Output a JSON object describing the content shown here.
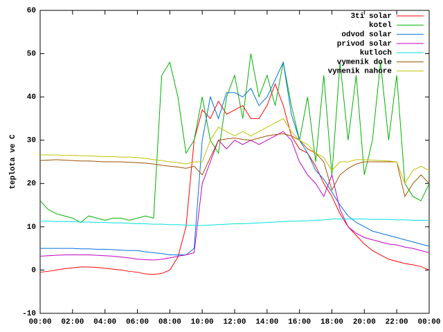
{
  "chart_data": {
    "type": "line",
    "ylabel": "teplota ve C",
    "ylim": [
      -10,
      60
    ],
    "yticks": [
      -10,
      0,
      10,
      20,
      30,
      40,
      50,
      60
    ],
    "xlim": [
      0,
      24
    ],
    "xticks": [
      {
        "value": 0,
        "label": "00:00"
      },
      {
        "value": 2,
        "label": "02:00"
      },
      {
        "value": 4,
        "label": "04:00"
      },
      {
        "value": 6,
        "label": "06:00"
      },
      {
        "value": 8,
        "label": "08:00"
      },
      {
        "value": 10,
        "label": "10:00"
      },
      {
        "value": 12,
        "label": "12:00"
      },
      {
        "value": 14,
        "label": "14:00"
      },
      {
        "value": 16,
        "label": "16:00"
      },
      {
        "value": 18,
        "label": "18:00"
      },
      {
        "value": 20,
        "label": "20:00"
      },
      {
        "value": 22,
        "label": "22:00"
      },
      {
        "value": 24,
        "label": "00:00"
      }
    ],
    "grid": false,
    "legend": "top-right",
    "x": [
      0,
      0.5,
      1,
      1.5,
      2,
      2.5,
      3,
      3.5,
      4,
      4.5,
      5,
      5.5,
      6,
      6.5,
      7,
      7.5,
      8,
      8.5,
      9,
      9.5,
      10,
      10.5,
      11,
      11.5,
      12,
      12.5,
      13,
      13.5,
      14,
      14.5,
      15,
      15.5,
      16,
      16.5,
      17,
      17.5,
      18,
      18.5,
      19,
      19.5,
      20,
      20.5,
      21,
      21.5,
      22,
      22.5,
      23,
      23.5,
      24
    ],
    "series": [
      {
        "name": "3ti solar",
        "color": "#ff0000",
        "values": [
          -0.5,
          -0.3,
          0,
          0.3,
          0.5,
          0.7,
          0.7,
          0.6,
          0.4,
          0.2,
          0,
          -0.3,
          -0.5,
          -0.9,
          -1,
          -0.8,
          0,
          3,
          10,
          30,
          37,
          35,
          39,
          36,
          37,
          38,
          35,
          35,
          38,
          43,
          38,
          31,
          28,
          27,
          24,
          20,
          17,
          13,
          10,
          8,
          6,
          4.5,
          3.5,
          2.5,
          2,
          1.5,
          1.2,
          0.8,
          0
        ]
      },
      {
        "name": "kotel",
        "color": "#00b000",
        "values": [
          16,
          14,
          13,
          12.5,
          12,
          11,
          12.5,
          12,
          11.5,
          12,
          12,
          11.5,
          12,
          12.5,
          12,
          45,
          48,
          40,
          27,
          30,
          40,
          30,
          27,
          40,
          45,
          35,
          50,
          40,
          45,
          38,
          48,
          38,
          30,
          40,
          25,
          45,
          22,
          48,
          30,
          45,
          22,
          30,
          48,
          30,
          45,
          20,
          17,
          16,
          20
        ]
      },
      {
        "name": "odvod solar",
        "color": "#0070e0",
        "values": [
          5,
          5,
          5,
          5,
          5,
          4.9,
          4.9,
          4.8,
          4.8,
          4.7,
          4.6,
          4.5,
          4.5,
          4.2,
          4,
          3.8,
          3.5,
          3.5,
          3.5,
          5,
          30,
          40,
          35,
          41,
          41,
          40,
          42,
          38,
          40,
          44,
          48,
          36,
          30,
          27,
          23,
          21,
          18,
          15,
          12.5,
          11,
          10,
          9,
          8.5,
          8,
          7.5,
          7,
          6.5,
          6,
          5.5
        ]
      },
      {
        "name": "privod solar",
        "color": "#c000c0",
        "values": [
          3.2,
          3.3,
          3.4,
          3.5,
          3.5,
          3.5,
          3.5,
          3.4,
          3.3,
          3.2,
          3,
          2.8,
          2.5,
          2.4,
          2.3,
          2.5,
          2.8,
          3.2,
          3.5,
          4,
          20,
          25,
          30,
          28,
          30,
          29,
          30,
          29,
          30,
          31,
          32,
          30,
          25,
          22,
          20,
          17,
          22,
          14,
          10,
          8.5,
          7.5,
          7,
          6.5,
          6,
          5.8,
          5.3,
          5,
          4.5,
          4
        ]
      },
      {
        "name": "kutloch",
        "color": "#00e0e0",
        "values": [
          11.3,
          11.3,
          11.2,
          11.2,
          11.2,
          11.1,
          11.1,
          11,
          11,
          10.9,
          10.9,
          10.8,
          10.7,
          10.7,
          10.6,
          10.6,
          10.5,
          10.5,
          10.4,
          10.3,
          10.3,
          10.4,
          10.5,
          10.6,
          10.7,
          10.7,
          10.8,
          10.9,
          11,
          11.1,
          11.2,
          11.3,
          11.3,
          11.4,
          11.5,
          11.6,
          11.8,
          11.8,
          11.8,
          11.8,
          11.8,
          11.7,
          11.7,
          11.7,
          11.6,
          11.6,
          11.5,
          11.5,
          11.5
        ]
      },
      {
        "name": "vymenik dole",
        "color": "#a05000",
        "values": [
          25.3,
          25.4,
          25.5,
          25.4,
          25.3,
          25.2,
          25.2,
          25.1,
          25,
          25,
          25,
          24.9,
          24.8,
          24.7,
          24.5,
          24.2,
          24,
          23.8,
          23.5,
          24,
          22,
          26,
          30,
          30.3,
          30.5,
          30.2,
          30,
          30.5,
          31,
          31.3,
          31.5,
          31,
          30,
          28,
          27,
          25,
          18.5,
          22,
          23.5,
          24.5,
          25,
          25,
          25,
          25,
          25,
          17,
          20,
          22,
          20
        ]
      },
      {
        "name": "vymenik nahore",
        "color": "#c0c000",
        "values": [
          26.6,
          26.6,
          26.6,
          26.5,
          26.5,
          26.4,
          26.4,
          26.3,
          26.2,
          26.2,
          26.1,
          26.1,
          26,
          25.8,
          25.5,
          25.3,
          25,
          24.8,
          24.5,
          25,
          25,
          30,
          33,
          32,
          31,
          32,
          31,
          32,
          33,
          34,
          35,
          32,
          30,
          29,
          27,
          26,
          23,
          25,
          25,
          25.5,
          25.5,
          25.4,
          25.3,
          25.2,
          25,
          20,
          23,
          24,
          23
        ]
      }
    ]
  }
}
